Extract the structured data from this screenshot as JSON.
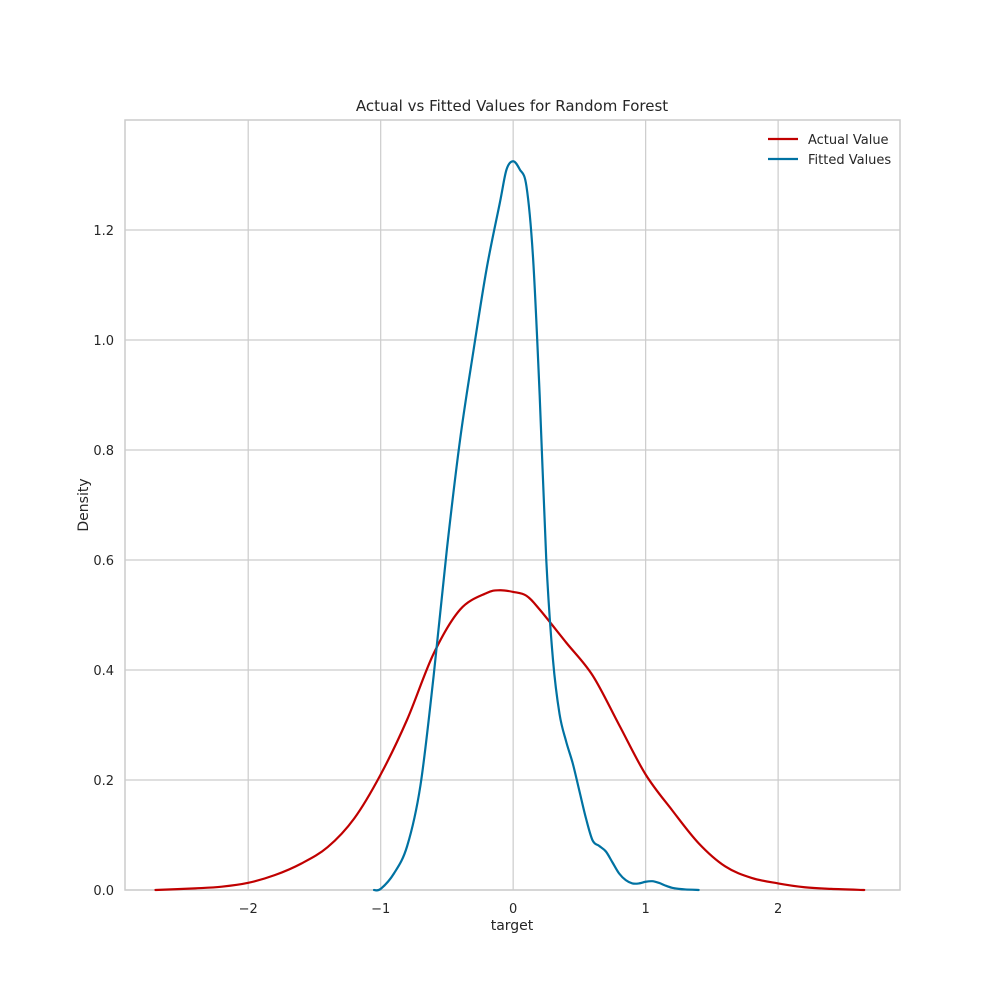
{
  "chart_data": {
    "type": "line",
    "title": "Actual vs Fitted Values for Random Forest",
    "xlabel": "target",
    "ylabel": "Density",
    "xlim": [
      -2.93,
      2.92
    ],
    "ylim": [
      0,
      1.4
    ],
    "x_ticks": [
      -2,
      -1,
      0,
      1,
      2
    ],
    "x_tick_labels": [
      "−2",
      "−1",
      "0",
      "1",
      "2"
    ],
    "y_ticks": [
      0.0,
      0.2,
      0.4,
      0.6,
      0.8,
      1.0,
      1.2
    ],
    "y_tick_labels": [
      "0.0",
      "0.2",
      "0.4",
      "0.6",
      "0.8",
      "1.0",
      "1.2"
    ],
    "grid": true,
    "legend_position": "top-right",
    "series": [
      {
        "name": "Actual Value",
        "color": "#c00000",
        "x": [
          -2.7,
          -2.4,
          -2.2,
          -2.0,
          -1.8,
          -1.6,
          -1.4,
          -1.2,
          -1.0,
          -0.8,
          -0.6,
          -0.4,
          -0.2,
          -0.1,
          0.0,
          0.1,
          0.2,
          0.4,
          0.6,
          0.8,
          1.0,
          1.2,
          1.4,
          1.6,
          1.8,
          2.0,
          2.2,
          2.4,
          2.65
        ],
        "values": [
          0.0,
          0.003,
          0.006,
          0.013,
          0.027,
          0.048,
          0.078,
          0.13,
          0.21,
          0.31,
          0.43,
          0.51,
          0.54,
          0.545,
          0.542,
          0.535,
          0.51,
          0.45,
          0.39,
          0.3,
          0.21,
          0.145,
          0.085,
          0.043,
          0.022,
          0.012,
          0.005,
          0.002,
          0.0
        ]
      },
      {
        "name": "Fitted Values",
        "color": "#0072a2",
        "x": [
          -1.05,
          -1.0,
          -0.9,
          -0.8,
          -0.7,
          -0.6,
          -0.5,
          -0.4,
          -0.3,
          -0.2,
          -0.1,
          -0.05,
          0.0,
          0.05,
          0.1,
          0.15,
          0.2,
          0.25,
          0.3,
          0.35,
          0.4,
          0.45,
          0.5,
          0.55,
          0.6,
          0.65,
          0.7,
          0.75,
          0.8,
          0.85,
          0.9,
          0.95,
          1.0,
          1.05,
          1.1,
          1.15,
          1.2,
          1.25,
          1.3,
          1.4
        ],
        "values": [
          0.0,
          0.002,
          0.03,
          0.08,
          0.19,
          0.39,
          0.62,
          0.82,
          0.98,
          1.13,
          1.25,
          1.31,
          1.325,
          1.31,
          1.28,
          1.15,
          0.9,
          0.6,
          0.42,
          0.32,
          0.27,
          0.23,
          0.18,
          0.13,
          0.09,
          0.08,
          0.07,
          0.05,
          0.03,
          0.018,
          0.012,
          0.012,
          0.015,
          0.016,
          0.013,
          0.008,
          0.004,
          0.002,
          0.001,
          0.0
        ]
      }
    ]
  }
}
